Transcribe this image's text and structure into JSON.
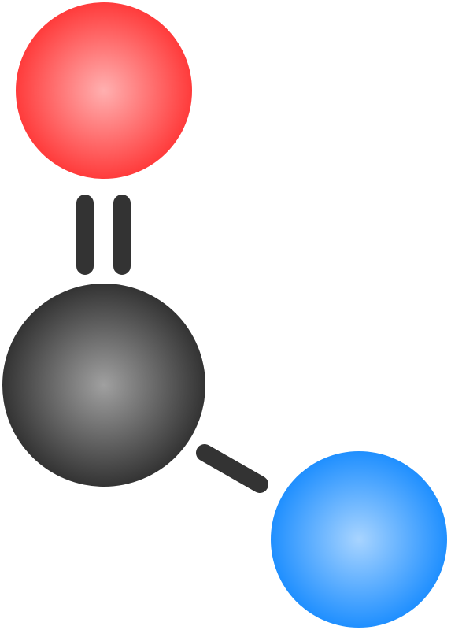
{
  "diagram": {
    "atoms": [
      {
        "id": "oxygen",
        "element": "O",
        "color": "#ff3b3b",
        "highlight": "#ffb0b0"
      },
      {
        "id": "carbon",
        "element": "C",
        "color": "#333333",
        "highlight": "#a0a0a0"
      },
      {
        "id": "nitrogen",
        "element": "N",
        "color": "#1f8fff",
        "highlight": "#a8d4ff"
      }
    ],
    "bonds": [
      {
        "from": "oxygen",
        "to": "carbon",
        "order": 2,
        "color": "#333333"
      },
      {
        "from": "carbon",
        "to": "nitrogen",
        "order": 1,
        "color": "#333333"
      }
    ],
    "background": "#ffffff"
  }
}
